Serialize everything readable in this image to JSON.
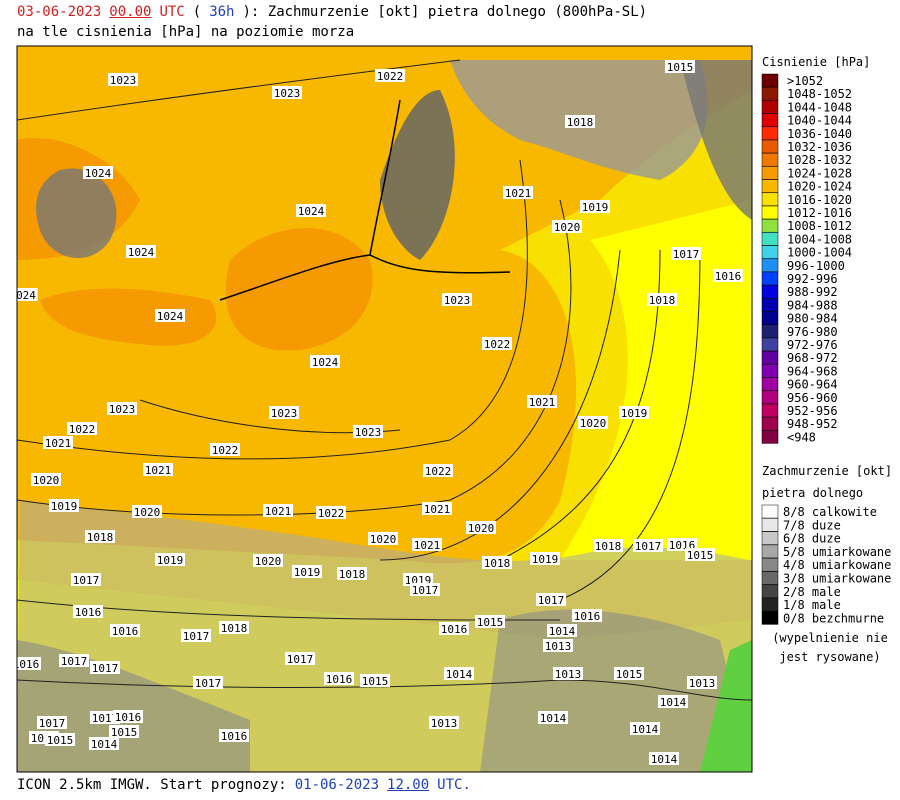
{
  "header": {
    "line1": [
      {
        "text": "03-06-2023",
        "color": "#d02020"
      },
      {
        "text": "00.00",
        "color": "#d02020",
        "underline": true
      },
      {
        "text": "UTC",
        "color": "#d02020"
      },
      {
        "text": "(",
        "color": "#000000"
      },
      {
        "text": "36h",
        "color": "#2040c0"
      },
      {
        "text": "): Zachmurzenie [okt] pietra dolnego (800hPa-SL)",
        "color": "#000000"
      }
    ],
    "line2": "na tle cisnienia [hPa] na poziomie morza"
  },
  "legend_pressure": {
    "title": "Cisnienie [hPa]",
    "items": [
      {
        "label": ">1052",
        "color": "#6b0000"
      },
      {
        "label": "1048-1052",
        "color": "#8b1a00"
      },
      {
        "label": "1044-1048",
        "color": "#b00000"
      },
      {
        "label": "1040-1044",
        "color": "#e00000"
      },
      {
        "label": "1036-1040",
        "color": "#ff2a00"
      },
      {
        "label": "1032-1036",
        "color": "#e85a00"
      },
      {
        "label": "1028-1032",
        "color": "#f07800"
      },
      {
        "label": "1024-1028",
        "color": "#f59a00"
      },
      {
        "label": "1020-1024",
        "color": "#f8b800"
      },
      {
        "label": "1016-1020",
        "color": "#f8e000"
      },
      {
        "label": "1012-1016",
        "color": "#ffff00"
      },
      {
        "label": "1008-1012",
        "color": "#90e040"
      },
      {
        "label": "1004-1008",
        "color": "#40e0c0"
      },
      {
        "label": "1000-1004",
        "color": "#40d0e8"
      },
      {
        "label": "996-1000",
        "color": "#2090f0"
      },
      {
        "label": "992-996",
        "color": "#0040ff"
      },
      {
        "label": "988-992",
        "color": "#0000e0"
      },
      {
        "label": "984-988",
        "color": "#0000b0"
      },
      {
        "label": "980-984",
        "color": "#000090"
      },
      {
        "label": "976-980",
        "color": "#202070"
      },
      {
        "label": "972-976",
        "color": "#4040a0"
      },
      {
        "label": "968-972",
        "color": "#6000a0"
      },
      {
        "label": "964-968",
        "color": "#8000b0"
      },
      {
        "label": "960-964",
        "color": "#a000a0"
      },
      {
        "label": "956-960",
        "color": "#b00080"
      },
      {
        "label": "952-956",
        "color": "#c00060"
      },
      {
        "label": "948-952",
        "color": "#a00050"
      },
      {
        "label": "<948",
        "color": "#800040"
      }
    ]
  },
  "legend_clouds": {
    "title": "Zachmurzenie [okt]",
    "subtitle": "pietra dolnego",
    "items": [
      {
        "label": "8/8 calkowite",
        "color": "#ffffff"
      },
      {
        "label": "7/8 duze",
        "color": "#e8e8e8"
      },
      {
        "label": "6/8 duze",
        "color": "#c8c8c8"
      },
      {
        "label": "5/8 umiarkowane",
        "color": "#a8a8a8"
      },
      {
        "label": "4/8 umiarkowane",
        "color": "#888888"
      },
      {
        "label": "3/8 umiarkowane",
        "color": "#686868"
      },
      {
        "label": "2/8 male",
        "color": "#444444"
      },
      {
        "label": "1/8 male",
        "color": "#222222"
      },
      {
        "label": "0/8 bezchmurne",
        "color": "#000000"
      }
    ],
    "note": [
      "(wypelnienie nie",
      "jest rysowane)"
    ]
  },
  "map": {
    "isobar_labels": [
      "1023",
      "1022",
      "1015",
      "1023",
      "1018",
      "1024",
      "1021",
      "1019",
      "1024",
      "1020",
      "1024",
      "1017",
      "1016",
      "024",
      "1023",
      "1018",
      "1024",
      "1022",
      "1024",
      "1021",
      "1023",
      "1023",
      "1019",
      "1020",
      "1022",
      "1023",
      "1021",
      "1022",
      "1021",
      "1022",
      "1020",
      "1019",
      "1020",
      "1021",
      "1022",
      "1021",
      "1020",
      "1018",
      "1020",
      "1021",
      "1018",
      "1017",
      "1016",
      "1015",
      "1019",
      "1020",
      "1019",
      "1018",
      "1019",
      "1018",
      "1019",
      "1017",
      "1017",
      "1017",
      "1016",
      "1016",
      "1015",
      "1018",
      "1016",
      "1016",
      "1014",
      "1017",
      "1013",
      "1016",
      "1017",
      "1017",
      "1017",
      "1014",
      "1013",
      "1015",
      "1016",
      "1015",
      "1017",
      "1013",
      "1014",
      "1014",
      "1017",
      "1016",
      "1017",
      "1013",
      "1015",
      "1016",
      "1015",
      "1014",
      "1016",
      "1014",
      "1014"
    ]
  },
  "footer": [
    {
      "text": "ICON 2.5km IMGW. Start prognozy:",
      "color": "#000000"
    },
    {
      "text": "01-06-2023",
      "color": "#2040c0"
    },
    {
      "text": "12.00",
      "color": "#2040c0",
      "underline": true
    },
    {
      "text": "UTC.",
      "color": "#2040c0"
    }
  ]
}
